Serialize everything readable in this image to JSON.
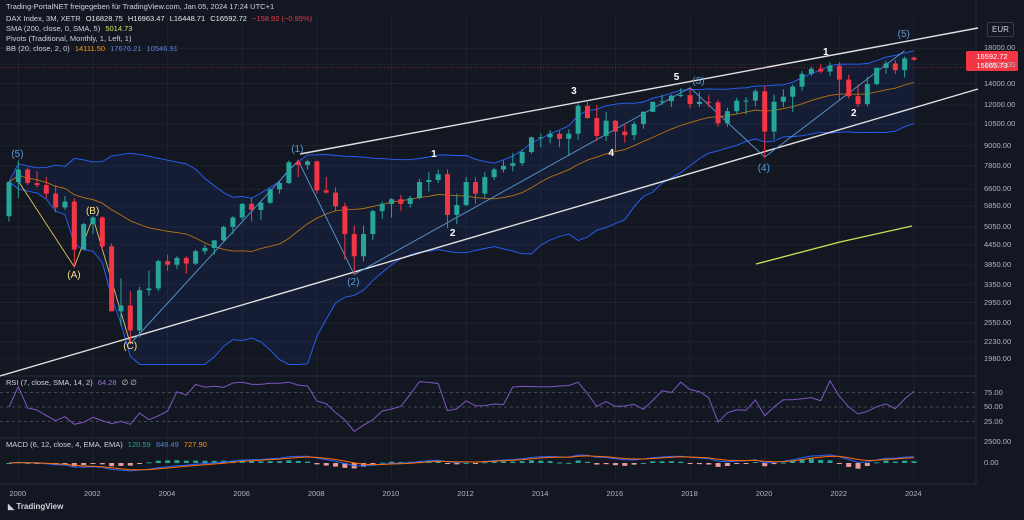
{
  "banner": "Trading-PortalNET freigegeben für TradingView.com, Jan 05, 2024 17:24 UTC+1",
  "legend": {
    "symbol": "DAX Index, 3M, XETR",
    "o": "O16828.75",
    "h": "H16963.47",
    "l": "L16448.71",
    "c": "C16592.72",
    "chg": "−158.92 (−0.95%)",
    "sma_label": "SMA (200, close, 0, SMA, 5)",
    "sma_val": "5014.73",
    "pivots_label": "Pivots (Traditional, Monthly, 1, Left, 1)",
    "bb_label": "BB (20, close, 2, 0)",
    "bb_basis": "14111.50",
    "bb_upper": "17676.21",
    "bb_lower": "10546.91",
    "rsi_label": "RSI (7, close, SMA, 14, 2)",
    "rsi_val": "64.28",
    "rsi_x": "∅ ∅",
    "macd_label": "MACD (6, 12, close, 4, EMA, EMA)",
    "macd_hist": "120.59",
    "macd_line": "848.49",
    "macd_signal": "727.90"
  },
  "currency": "EUR",
  "price_tags": {
    "last": "16592.72",
    "second": "15665.73"
  },
  "footer": "TradingView",
  "colors": {
    "up": "#26a69a",
    "down": "#f23645",
    "bg": "#131722",
    "sma": "#d4e157",
    "bb": "#2962ff",
    "basis": "#ff9800",
    "channel": "#e0e0e0",
    "rsi": "#7e57c2",
    "macd": "#2962ff",
    "signal": "#ff6d00"
  },
  "chart_data": {
    "type": "candlestick",
    "title": "DAX Index, 3M, XETR",
    "y_scale": "log",
    "yticks": [
      "18000.00",
      "16000.00",
      "14000.00",
      "12000.00",
      "10500.00",
      "9000.00",
      "7800.00",
      "6600.00",
      "5850.00",
      "5050.00",
      "4450.00",
      "3850.00",
      "3350.00",
      "2950.00",
      "2550.00",
      "2230.00",
      "1980.00"
    ],
    "xticks": [
      "2000",
      "2002",
      "2004",
      "2006",
      "2008",
      "2010",
      "2012",
      "2014",
      "2016",
      "2018",
      "2020",
      "2022",
      "2024"
    ],
    "rsi_ticks": [
      "75.00",
      "50.00",
      "25.00"
    ],
    "macd_ticks": [
      "0.00",
      "2500.00"
    ],
    "candles": [
      {
        "t": "1999Q4",
        "o": 5450,
        "h": 6980,
        "l": 5250,
        "c": 6950
      },
      {
        "t": "2000Q1",
        "o": 6950,
        "h": 8100,
        "l": 6200,
        "c": 7600
      },
      {
        "t": "2000Q2",
        "o": 7600,
        "h": 7700,
        "l": 6800,
        "c": 6900
      },
      {
        "t": "2000Q3",
        "o": 6900,
        "h": 7500,
        "l": 6700,
        "c": 6800
      },
      {
        "t": "2000Q4",
        "o": 6800,
        "h": 7200,
        "l": 6200,
        "c": 6400
      },
      {
        "t": "2001Q1",
        "o": 6400,
        "h": 6800,
        "l": 5600,
        "c": 5800
      },
      {
        "t": "2001Q2",
        "o": 5800,
        "h": 6300,
        "l": 5700,
        "c": 6050
      },
      {
        "t": "2001Q3",
        "o": 6050,
        "h": 6200,
        "l": 3800,
        "c": 4300
      },
      {
        "t": "2001Q4",
        "o": 4300,
        "h": 5200,
        "l": 4300,
        "c": 5150
      },
      {
        "t": "2002Q1",
        "o": 5150,
        "h": 5450,
        "l": 4800,
        "c": 5400
      },
      {
        "t": "2002Q2",
        "o": 5400,
        "h": 5450,
        "l": 4300,
        "c": 4400
      },
      {
        "t": "2002Q3",
        "o": 4400,
        "h": 4500,
        "l": 2800,
        "c": 2770
      },
      {
        "t": "2002Q4",
        "o": 2770,
        "h": 3500,
        "l": 2500,
        "c": 2890
      },
      {
        "t": "2003Q1",
        "o": 2890,
        "h": 3200,
        "l": 2200,
        "c": 2420
      },
      {
        "t": "2003Q2",
        "o": 2420,
        "h": 3300,
        "l": 2300,
        "c": 3220
      },
      {
        "t": "2003Q3",
        "o": 3220,
        "h": 3700,
        "l": 3100,
        "c": 3260
      },
      {
        "t": "2003Q4",
        "o": 3260,
        "h": 4000,
        "l": 3200,
        "c": 3960
      },
      {
        "t": "2004Q1",
        "o": 3960,
        "h": 4150,
        "l": 3700,
        "c": 3860
      },
      {
        "t": "2004Q2",
        "o": 3860,
        "h": 4100,
        "l": 3750,
        "c": 4050
      },
      {
        "t": "2004Q3",
        "o": 4050,
        "h": 4100,
        "l": 3620,
        "c": 3890
      },
      {
        "t": "2004Q4",
        "o": 3890,
        "h": 4300,
        "l": 3850,
        "c": 4250
      },
      {
        "t": "2005Q1",
        "o": 4250,
        "h": 4450,
        "l": 4150,
        "c": 4350
      },
      {
        "t": "2005Q2",
        "o": 4350,
        "h": 4600,
        "l": 4150,
        "c": 4590
      },
      {
        "t": "2005Q3",
        "o": 4590,
        "h": 5100,
        "l": 4550,
        "c": 5050
      },
      {
        "t": "2005Q4",
        "o": 5050,
        "h": 5450,
        "l": 4800,
        "c": 5400
      },
      {
        "t": "2006Q1",
        "o": 5400,
        "h": 6000,
        "l": 5300,
        "c": 5950
      },
      {
        "t": "2006Q2",
        "o": 5950,
        "h": 6200,
        "l": 5250,
        "c": 5700
      },
      {
        "t": "2006Q3",
        "o": 5700,
        "h": 6050,
        "l": 5300,
        "c": 6000
      },
      {
        "t": "2006Q4",
        "o": 6000,
        "h": 6650,
        "l": 5950,
        "c": 6600
      },
      {
        "t": "2007Q1",
        "o": 6600,
        "h": 7000,
        "l": 6400,
        "c": 6900
      },
      {
        "t": "2007Q2",
        "o": 6900,
        "h": 8100,
        "l": 6850,
        "c": 8000
      },
      {
        "t": "2007Q3",
        "o": 8000,
        "h": 8150,
        "l": 7200,
        "c": 7850
      },
      {
        "t": "2007Q4",
        "o": 7850,
        "h": 8150,
        "l": 7600,
        "c": 8050
      },
      {
        "t": "2008Q1",
        "o": 8050,
        "h": 8100,
        "l": 6400,
        "c": 6550
      },
      {
        "t": "2008Q2",
        "o": 6550,
        "h": 7200,
        "l": 6400,
        "c": 6450
      },
      {
        "t": "2008Q3",
        "o": 6450,
        "h": 6700,
        "l": 5650,
        "c": 5850
      },
      {
        "t": "2008Q4",
        "o": 5850,
        "h": 6000,
        "l": 4000,
        "c": 4800
      },
      {
        "t": "2009Q1",
        "o": 4800,
        "h": 5100,
        "l": 3600,
        "c": 4100
      },
      {
        "t": "2009Q2",
        "o": 4100,
        "h": 5100,
        "l": 3950,
        "c": 4800
      },
      {
        "t": "2009Q3",
        "o": 4800,
        "h": 5700,
        "l": 4600,
        "c": 5650
      },
      {
        "t": "2009Q4",
        "o": 5650,
        "h": 6050,
        "l": 5350,
        "c": 5950
      },
      {
        "t": "2010Q1",
        "o": 5950,
        "h": 6200,
        "l": 5400,
        "c": 6150
      },
      {
        "t": "2010Q2",
        "o": 6150,
        "h": 6350,
        "l": 5650,
        "c": 5950
      },
      {
        "t": "2010Q3",
        "o": 5950,
        "h": 6300,
        "l": 5800,
        "c": 6200
      },
      {
        "t": "2010Q4",
        "o": 6200,
        "h": 7100,
        "l": 6150,
        "c": 6950
      },
      {
        "t": "2011Q1",
        "o": 6950,
        "h": 7450,
        "l": 6500,
        "c": 7050
      },
      {
        "t": "2011Q2",
        "o": 7050,
        "h": 7600,
        "l": 6900,
        "c": 7350
      },
      {
        "t": "2011Q3",
        "o": 7350,
        "h": 7600,
        "l": 5000,
        "c": 5500
      },
      {
        "t": "2011Q4",
        "o": 5500,
        "h": 6400,
        "l": 5150,
        "c": 5900
      },
      {
        "t": "2012Q1",
        "o": 5900,
        "h": 7200,
        "l": 5850,
        "c": 6950
      },
      {
        "t": "2012Q2",
        "o": 6950,
        "h": 7200,
        "l": 5950,
        "c": 6400
      },
      {
        "t": "2012Q3",
        "o": 6400,
        "h": 7450,
        "l": 6200,
        "c": 7200
      },
      {
        "t": "2012Q4",
        "o": 7200,
        "h": 7700,
        "l": 7050,
        "c": 7600
      },
      {
        "t": "2013Q1",
        "o": 7600,
        "h": 8100,
        "l": 7450,
        "c": 7800
      },
      {
        "t": "2013Q2",
        "o": 7800,
        "h": 8550,
        "l": 7500,
        "c": 7950
      },
      {
        "t": "2013Q3",
        "o": 7950,
        "h": 8750,
        "l": 7800,
        "c": 8600
      },
      {
        "t": "2013Q4",
        "o": 8600,
        "h": 9600,
        "l": 8500,
        "c": 9550
      },
      {
        "t": "2014Q1",
        "o": 9550,
        "h": 9800,
        "l": 8900,
        "c": 9550
      },
      {
        "t": "2014Q2",
        "o": 9550,
        "h": 10050,
        "l": 9150,
        "c": 9800
      },
      {
        "t": "2014Q3",
        "o": 9800,
        "h": 10000,
        "l": 8900,
        "c": 9450
      },
      {
        "t": "2014Q4",
        "o": 9450,
        "h": 10100,
        "l": 8350,
        "c": 9800
      },
      {
        "t": "2015Q1",
        "o": 9800,
        "h": 12200,
        "l": 9400,
        "c": 11950
      },
      {
        "t": "2015Q2",
        "o": 11950,
        "h": 12400,
        "l": 10900,
        "c": 10950
      },
      {
        "t": "2015Q3",
        "o": 10950,
        "h": 12000,
        "l": 9300,
        "c": 9650
      },
      {
        "t": "2015Q4",
        "o": 9650,
        "h": 11450,
        "l": 9300,
        "c": 10750
      },
      {
        "t": "2016Q1",
        "o": 10750,
        "h": 10800,
        "l": 8700,
        "c": 9950
      },
      {
        "t": "2016Q2",
        "o": 9950,
        "h": 10500,
        "l": 9200,
        "c": 9700
      },
      {
        "t": "2016Q3",
        "o": 9700,
        "h": 10700,
        "l": 9350,
        "c": 10500
      },
      {
        "t": "2016Q4",
        "o": 10500,
        "h": 11500,
        "l": 10150,
        "c": 11450
      },
      {
        "t": "2017Q1",
        "o": 11450,
        "h": 12300,
        "l": 11450,
        "c": 12300
      },
      {
        "t": "2017Q2",
        "o": 12300,
        "h": 12950,
        "l": 12000,
        "c": 12350
      },
      {
        "t": "2017Q3",
        "o": 12350,
        "h": 12950,
        "l": 11850,
        "c": 12850
      },
      {
        "t": "2017Q4",
        "o": 12850,
        "h": 13550,
        "l": 12700,
        "c": 12900
      },
      {
        "t": "2018Q1",
        "o": 12900,
        "h": 13600,
        "l": 11750,
        "c": 12100
      },
      {
        "t": "2018Q2",
        "o": 12100,
        "h": 13200,
        "l": 11850,
        "c": 12300
      },
      {
        "t": "2018Q3",
        "o": 12300,
        "h": 12900,
        "l": 11850,
        "c": 12250
      },
      {
        "t": "2018Q4",
        "o": 12250,
        "h": 12450,
        "l": 10300,
        "c": 10550
      },
      {
        "t": "2019Q1",
        "o": 10550,
        "h": 11800,
        "l": 10300,
        "c": 11500
      },
      {
        "t": "2019Q2",
        "o": 11500,
        "h": 12650,
        "l": 11300,
        "c": 12400
      },
      {
        "t": "2019Q3",
        "o": 12400,
        "h": 12700,
        "l": 11250,
        "c": 12400
      },
      {
        "t": "2019Q4",
        "o": 12400,
        "h": 13450,
        "l": 11900,
        "c": 13250
      },
      {
        "t": "2020Q1",
        "o": 13250,
        "h": 13800,
        "l": 8250,
        "c": 9950
      },
      {
        "t": "2020Q2",
        "o": 9950,
        "h": 12950,
        "l": 9400,
        "c": 12300
      },
      {
        "t": "2020Q3",
        "o": 12300,
        "h": 13450,
        "l": 11850,
        "c": 12750
      },
      {
        "t": "2020Q4",
        "o": 12750,
        "h": 13900,
        "l": 11450,
        "c": 13700
      },
      {
        "t": "2021Q1",
        "o": 13700,
        "h": 15300,
        "l": 13300,
        "c": 15000
      },
      {
        "t": "2021Q2",
        "o": 15000,
        "h": 15800,
        "l": 14800,
        "c": 15550
      },
      {
        "t": "2021Q3",
        "o": 15550,
        "h": 16050,
        "l": 15050,
        "c": 15250
      },
      {
        "t": "2021Q4",
        "o": 15250,
        "h": 16300,
        "l": 14800,
        "c": 15900
      },
      {
        "t": "2022Q1",
        "o": 15900,
        "h": 16300,
        "l": 12450,
        "c": 14400
      },
      {
        "t": "2022Q2",
        "o": 14400,
        "h": 14900,
        "l": 12600,
        "c": 12800
      },
      {
        "t": "2022Q3",
        "o": 12800,
        "h": 13900,
        "l": 11850,
        "c": 12100
      },
      {
        "t": "2022Q4",
        "o": 12100,
        "h": 14700,
        "l": 11900,
        "c": 13950
      },
      {
        "t": "2023Q1",
        "o": 13950,
        "h": 15700,
        "l": 13800,
        "c": 15650
      },
      {
        "t": "2023Q2",
        "o": 15650,
        "h": 16450,
        "l": 15000,
        "c": 16150
      },
      {
        "t": "2023Q3",
        "o": 16150,
        "h": 16550,
        "l": 15000,
        "c": 15400
      },
      {
        "t": "2023Q4",
        "o": 15400,
        "h": 16950,
        "l": 14600,
        "c": 16750
      },
      {
        "t": "2024Q1",
        "o": 16830,
        "h": 16960,
        "l": 16450,
        "c": 16590
      }
    ],
    "wave_labels": [
      {
        "text": "(5)",
        "t": "2000Q1",
        "price": 8400,
        "style": "b"
      },
      {
        "text": "(A)",
        "t": "2001Q3",
        "price": 3560,
        "style": "y"
      },
      {
        "text": "(B)",
        "t": "2002Q1",
        "price": 5620,
        "style": "y"
      },
      {
        "text": "(C)",
        "t": "2003Q1",
        "price": 2150,
        "style": "y"
      },
      {
        "text": "(1)",
        "t": "2007Q3",
        "price": 8700,
        "style": "b"
      },
      {
        "text": "(2)",
        "t": "2009Q1",
        "price": 3400,
        "style": "b"
      },
      {
        "text": "1",
        "t": "2011Q2",
        "price": 8400,
        "style": "w"
      },
      {
        "text": "2",
        "t": "2011Q4",
        "price": 4800,
        "style": "w"
      },
      {
        "text": "3",
        "t": "2015Q1",
        "price": 13200,
        "style": "w"
      },
      {
        "text": "4",
        "t": "2016Q1",
        "price": 8500,
        "style": "w"
      },
      {
        "text": "5",
        "t": "2017Q4",
        "price": 14600,
        "style": "w"
      },
      {
        "text": "(3)",
        "t": "2018Q2",
        "price": 14200,
        "style": "b"
      },
      {
        "text": "(4)",
        "t": "2020Q1",
        "price": 7600,
        "style": "b"
      },
      {
        "text": "1",
        "t": "2021Q4",
        "price": 17400,
        "style": "w"
      },
      {
        "text": "2",
        "t": "2022Q3",
        "price": 11300,
        "style": "w"
      },
      {
        "text": "(5)",
        "t": "2023Q4",
        "price": 19800,
        "style": "b"
      }
    ]
  }
}
